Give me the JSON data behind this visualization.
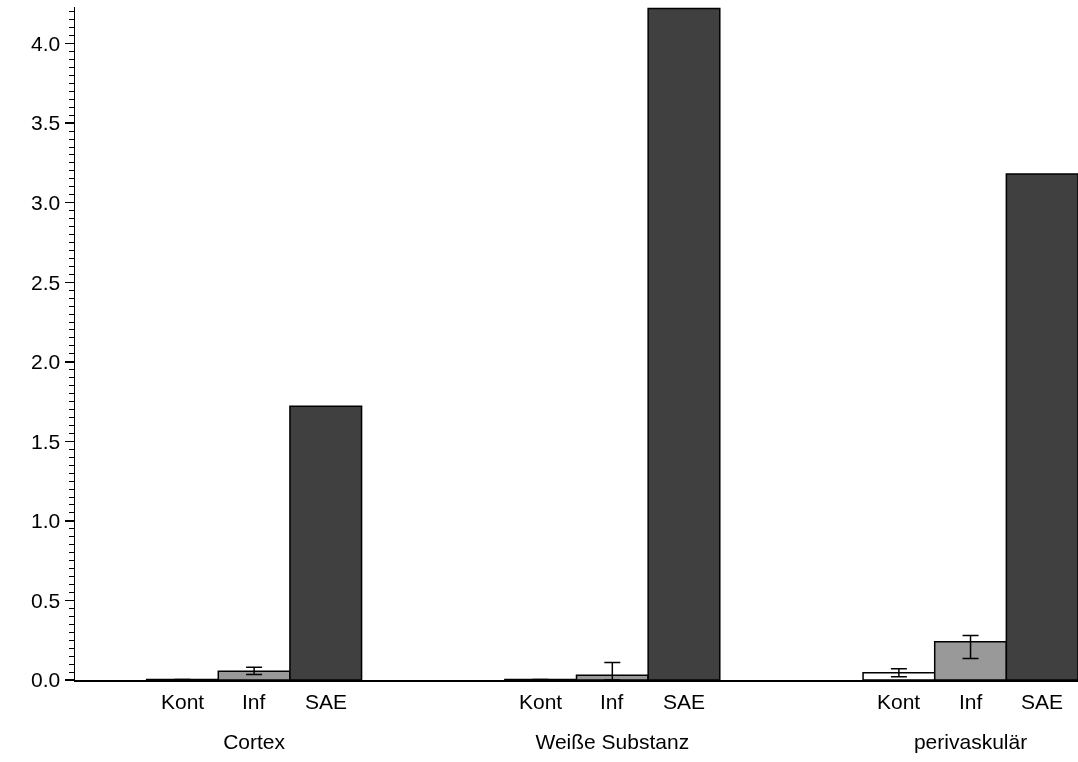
{
  "chart_data": {
    "type": "bar",
    "categories": [
      "Cortex",
      "Weiße Substanz",
      "perivaskulär"
    ],
    "series": [
      {
        "name": "Kont",
        "color": "#ffffff",
        "values": [
          0.003,
          0.003,
          0.045
        ],
        "errors": [
          null,
          null,
          [
            0.02,
            0.07
          ]
        ]
      },
      {
        "name": "Inf",
        "color": "#999999",
        "values": [
          0.055,
          0.03,
          0.24
        ],
        "errors": [
          [
            0.035,
            0.08
          ],
          [
            0,
            0.11
          ],
          [
            0.135,
            0.28
          ]
        ]
      },
      {
        "name": "SAE",
        "color": "#404040",
        "values": [
          1.72,
          4.22,
          3.18
        ]
      }
    ],
    "ylim": [
      0,
      4.23
    ],
    "yticks": [
      {
        "value": 0,
        "label": "0.0"
      },
      0.5,
      {
        "value": 1,
        "label": "1.0"
      },
      1.5,
      {
        "value": 2,
        "label": "2.0"
      },
      2.5,
      {
        "value": 3,
        "label": "3.0"
      },
      3.5,
      {
        "value": 4,
        "label": "4.0"
      },
      {
        "value": 0.05,
        "label": null
      },
      {
        "value": 0.1,
        "label": null
      },
      {
        "value": 0.15,
        "label": null
      },
      {
        "value": 0.2,
        "label": null
      },
      {
        "value": 0.25,
        "label": null
      },
      {
        "value": 0.3,
        "label": null
      },
      {
        "value": 0.35,
        "label": null
      },
      {
        "value": 0.4,
        "label": null
      },
      {
        "value": 0.45,
        "label": null
      },
      {
        "value": 0.55,
        "label": null
      },
      {
        "value": 0.6,
        "label": null
      },
      {
        "value": 0.65,
        "label": null
      },
      {
        "value": 0.7,
        "label": null
      },
      {
        "value": 0.75,
        "label": null
      },
      {
        "value": 0.8,
        "label": null
      },
      {
        "value": 0.85,
        "label": null
      },
      {
        "value": 0.9,
        "label": null
      },
      {
        "value": 0.95,
        "label": null
      },
      {
        "value": 1.05,
        "label": null
      },
      {
        "value": 1.1,
        "label": null
      },
      {
        "value": 1.15,
        "label": null
      },
      {
        "value": 1.2,
        "label": null
      },
      {
        "value": 1.25,
        "label": null
      },
      {
        "value": 1.3,
        "label": null
      },
      {
        "value": 1.35,
        "label": null
      },
      {
        "value": 1.4,
        "label": null
      },
      {
        "value": 1.45,
        "label": null
      },
      {
        "value": 1.55,
        "label": null
      },
      {
        "value": 1.6,
        "label": null
      },
      {
        "value": 1.65,
        "label": null
      },
      {
        "value": 1.7,
        "label": null
      },
      {
        "value": 1.75,
        "label": null
      },
      {
        "value": 1.8,
        "label": null
      },
      {
        "value": 1.85,
        "label": null
      },
      {
        "value": 1.9,
        "label": null
      },
      {
        "value": 1.95,
        "label": null
      },
      {
        "value": 2.05,
        "label": null
      },
      {
        "value": 2.1,
        "label": null
      },
      {
        "value": 2.15,
        "label": null
      },
      {
        "value": 2.2,
        "label": null
      },
      {
        "value": 2.25,
        "label": null
      },
      {
        "value": 2.3,
        "label": null
      },
      {
        "value": 2.35,
        "label": null
      },
      {
        "value": 2.4,
        "label": null
      },
      {
        "value": 2.45,
        "label": null
      },
      {
        "value": 2.55,
        "label": null
      },
      {
        "value": 2.6,
        "label": null
      },
      {
        "value": 2.65,
        "label": null
      },
      {
        "value": 2.7,
        "label": null
      },
      {
        "value": 2.75,
        "label": null
      },
      {
        "value": 2.8,
        "label": null
      },
      {
        "value": 2.85,
        "label": null
      },
      {
        "value": 2.9,
        "label": null
      },
      {
        "value": 2.95,
        "label": null
      },
      {
        "value": 3.05,
        "label": null
      },
      {
        "value": 3.1,
        "label": null
      },
      {
        "value": 3.15,
        "label": null
      },
      {
        "value": 3.2,
        "label": null
      },
      {
        "value": 3.25,
        "label": null
      },
      {
        "value": 3.3,
        "label": null
      },
      {
        "value": 3.35,
        "label": null
      },
      {
        "value": 3.4,
        "label": null
      },
      {
        "value": 3.45,
        "label": null
      },
      {
        "value": 3.55,
        "label": null
      },
      {
        "value": 3.6,
        "label": null
      },
      {
        "value": 3.65,
        "label": null
      },
      {
        "value": 3.7,
        "label": null
      },
      {
        "value": 3.75,
        "label": null
      },
      {
        "value": 3.8,
        "label": null
      },
      {
        "value": 3.85,
        "label": null
      },
      {
        "value": 3.9,
        "label": null
      },
      {
        "value": 3.95,
        "label": null
      },
      {
        "value": 4.05,
        "label": null
      },
      {
        "value": 4.1,
        "label": null
      },
      {
        "value": 4.15,
        "label": null
      },
      {
        "value": 4.2,
        "label": null
      }
    ],
    "grid": false,
    "legend": "bottom"
  }
}
